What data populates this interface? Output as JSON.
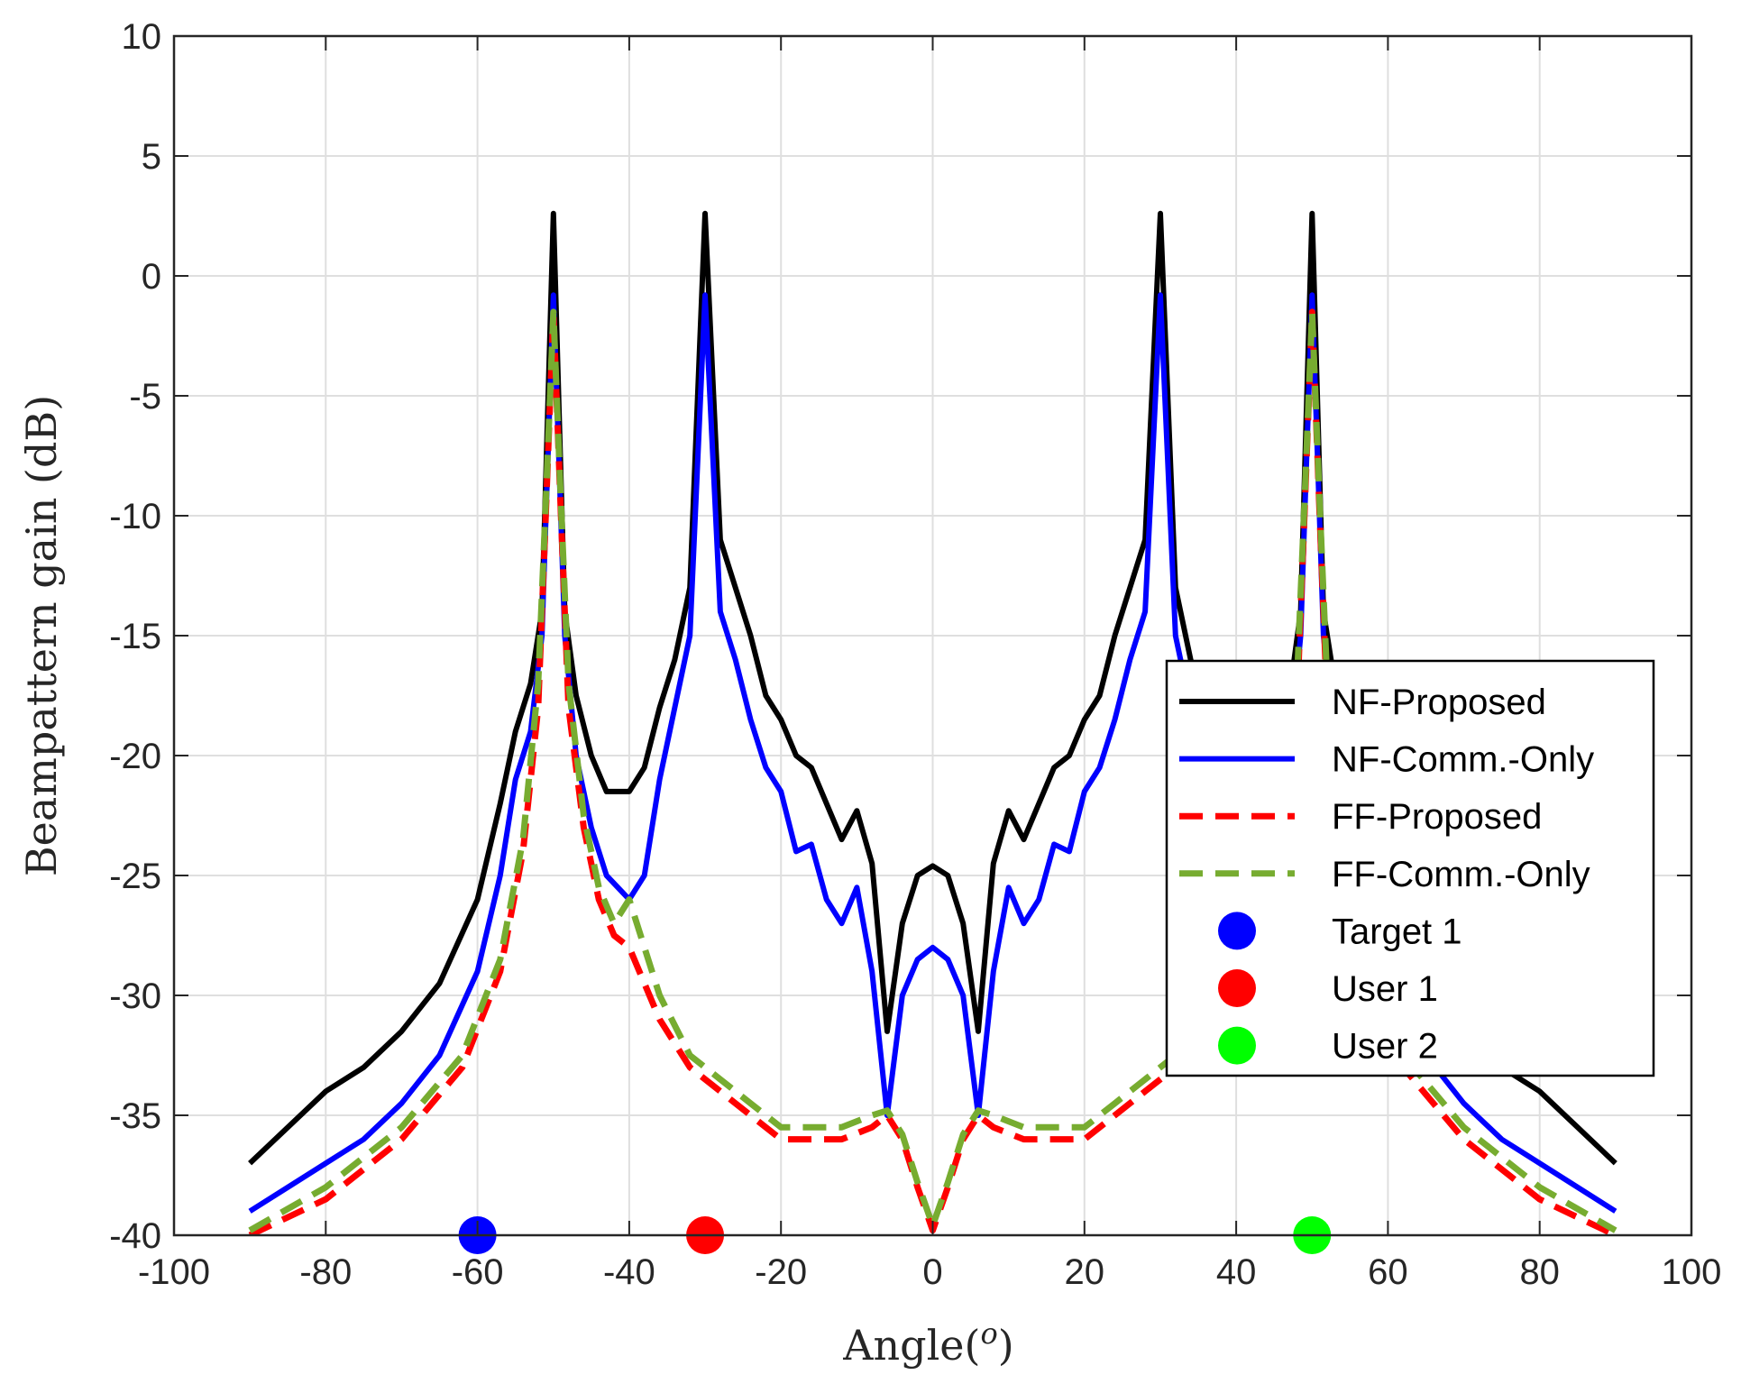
{
  "chart_data": {
    "type": "line",
    "title": "",
    "xlabel": "Angle(",
    "xlabel_sup": "o",
    "xlabel_close": ")",
    "ylabel": "Beampattern gain (dB)",
    "xlim": [
      -100,
      100
    ],
    "ylim": [
      -40,
      10
    ],
    "xticks": [
      -100,
      -80,
      -60,
      -40,
      -20,
      0,
      20,
      40,
      60,
      80,
      100
    ],
    "yticks": [
      10,
      5,
      0,
      -5,
      -10,
      -15,
      -20,
      -25,
      -30,
      -35,
      -40
    ],
    "grid": true,
    "legend_position": "center-right",
    "series": [
      {
        "name": "NF-Proposed",
        "color": "#000000",
        "style": "solid",
        "x": [
          -90,
          -85,
          -80,
          -75,
          -70,
          -65,
          -60,
          -57,
          -55,
          -53,
          -51.5,
          -50,
          -48.5,
          -47,
          -45,
          -43,
          -40,
          -38,
          -36,
          -34,
          -32,
          -30,
          -28,
          -26,
          -24,
          -22,
          -20,
          -18,
          -16,
          -14,
          -12,
          -10,
          -8,
          -6,
          -4,
          -2,
          0,
          2,
          4,
          6,
          8,
          10,
          12,
          14,
          16,
          18,
          20,
          22,
          24,
          26,
          28,
          30,
          32,
          34,
          36,
          38,
          40,
          43,
          45,
          47,
          48.5,
          50,
          51.5,
          53,
          55,
          57,
          60,
          65,
          70,
          75,
          80,
          85,
          90
        ],
        "values": [
          -37,
          -35.5,
          -34,
          -33,
          -31.5,
          -29.5,
          -26,
          -22,
          -19,
          -17,
          -14,
          2.6,
          -14,
          -17.5,
          -20,
          -21.5,
          -21.5,
          -20.5,
          -18,
          -16,
          -13,
          2.6,
          -11,
          -13,
          -15,
          -17.5,
          -18.5,
          -20,
          -20.5,
          -22,
          -23.5,
          -22.3,
          -24.5,
          -31.5,
          -27,
          -25,
          -24.6,
          -25,
          -27,
          -31.5,
          -24.5,
          -22.3,
          -23.5,
          -22,
          -20.5,
          -20,
          -18.5,
          -17.5,
          -15,
          -13,
          -11,
          2.6,
          -13,
          -16,
          -18,
          -20.5,
          -21.5,
          -21.5,
          -20,
          -17.5,
          -14,
          2.6,
          -14,
          -17,
          -19,
          -22,
          -26,
          -29.5,
          -31.5,
          -33,
          -34,
          -35.5,
          -37
        ]
      },
      {
        "name": "NF-Comm.-Only",
        "color": "#0000ff",
        "style": "solid",
        "x": [
          -90,
          -85,
          -80,
          -75,
          -70,
          -65,
          -60,
          -57,
          -55,
          -53,
          -51.5,
          -50,
          -48.5,
          -47,
          -45,
          -43,
          -40,
          -38,
          -36,
          -34,
          -32,
          -30,
          -28,
          -26,
          -24,
          -22,
          -20,
          -18,
          -16,
          -14,
          -12,
          -10,
          -8,
          -6,
          -4,
          -2,
          0,
          2,
          4,
          6,
          8,
          10,
          12,
          14,
          16,
          18,
          20,
          22,
          24,
          26,
          28,
          30,
          32,
          34,
          36,
          38,
          40,
          43,
          45,
          47,
          48.5,
          50,
          51.5,
          53,
          55,
          57,
          60,
          65,
          70,
          75,
          80,
          85,
          90
        ],
        "values": [
          -39,
          -38,
          -37,
          -36,
          -34.5,
          -32.5,
          -29,
          -25,
          -21,
          -19,
          -15,
          -0.8,
          -15,
          -20,
          -23,
          -25,
          -26,
          -25,
          -21,
          -18,
          -15,
          -0.8,
          -14,
          -16,
          -18.5,
          -20.5,
          -21.5,
          -24,
          -23.7,
          -26,
          -27,
          -25.5,
          -29,
          -35,
          -30,
          -28.5,
          -28,
          -28.5,
          -30,
          -35,
          -29,
          -25.5,
          -27,
          -26,
          -23.7,
          -24,
          -21.5,
          -20.5,
          -18.5,
          -16,
          -14,
          -0.8,
          -15,
          -18,
          -21,
          -25,
          -26,
          -25,
          -23,
          -20,
          -15,
          -0.8,
          -15,
          -19,
          -21,
          -25,
          -29,
          -32.5,
          -34.5,
          -36,
          -37,
          -38,
          -39
        ]
      },
      {
        "name": "FF-Proposed",
        "color": "#ff0000",
        "style": "dashed",
        "x": [
          -90,
          -80,
          -70,
          -62,
          -57,
          -54,
          -52,
          -51,
          -50,
          -49,
          -48,
          -46,
          -44,
          -42,
          -40,
          -36,
          -32,
          -28,
          -24,
          -20,
          -16,
          -12,
          -8,
          -6,
          -4,
          -2,
          0,
          2,
          4,
          6,
          8,
          12,
          16,
          20,
          24,
          28,
          32,
          36,
          40,
          44,
          46,
          48,
          49,
          50,
          51,
          52,
          54,
          57,
          62,
          70,
          80,
          90
        ],
        "values": [
          -40,
          -38.5,
          -36,
          -33,
          -29,
          -24,
          -18,
          -10,
          -1.5,
          -10,
          -18,
          -23,
          -26,
          -27.5,
          -28,
          -31,
          -33,
          -34,
          -35,
          -36,
          -36,
          -36,
          -35.5,
          -35,
          -36,
          -38,
          -39.8,
          -38,
          -36,
          -35,
          -35.5,
          -36,
          -36,
          -36,
          -35,
          -34,
          -33,
          -31,
          -30,
          -27,
          -23,
          -18,
          -10,
          -1.5,
          -10,
          -18,
          -24,
          -29,
          -33,
          -36,
          -38.5,
          -40
        ]
      },
      {
        "name": "FF-Comm.-Only",
        "color": "#77ac30",
        "style": "dashed",
        "x": [
          -90,
          -80,
          -70,
          -62,
          -57,
          -54,
          -52,
          -51,
          -50,
          -49,
          -48,
          -46,
          -44,
          -42,
          -40,
          -36,
          -32,
          -28,
          -24,
          -20,
          -16,
          -12,
          -8,
          -6,
          -4,
          -2,
          0,
          2,
          4,
          6,
          8,
          12,
          16,
          20,
          24,
          28,
          32,
          36,
          40,
          44,
          46,
          48,
          49,
          50,
          51,
          52,
          54,
          57,
          62,
          70,
          80,
          90
        ],
        "values": [
          -39.8,
          -38,
          -35.5,
          -32.5,
          -28.5,
          -23.5,
          -17,
          -9.5,
          -1.5,
          -9.5,
          -17,
          -22.5,
          -25.5,
          -27,
          -26,
          -30,
          -32.5,
          -33.5,
          -34.5,
          -35.5,
          -35.5,
          -35.5,
          -35,
          -34.8,
          -35.8,
          -37.8,
          -39.6,
          -37.8,
          -35.8,
          -34.8,
          -35,
          -35.5,
          -35.5,
          -35.5,
          -34.5,
          -33.5,
          -32.5,
          -30,
          -28,
          -26,
          -22.5,
          -17,
          -9.5,
          -1.5,
          -9.5,
          -17,
          -23.5,
          -28.5,
          -32.5,
          -35.5,
          -38,
          -39.8
        ]
      }
    ],
    "markers": [
      {
        "name": "Target 1",
        "color": "#0000ff",
        "x": -60,
        "y": -40
      },
      {
        "name": "User 1",
        "color": "#ff0000",
        "x": -30,
        "y": -40
      },
      {
        "name": "User 2",
        "color": "#00ff00",
        "x": 50,
        "y": -40
      }
    ]
  }
}
